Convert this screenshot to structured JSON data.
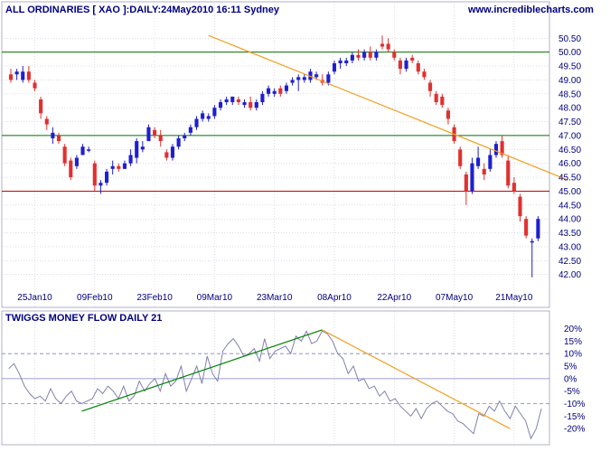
{
  "colors": {
    "up": "#1f1fcf",
    "down": "#e03030",
    "resistance": "#007000",
    "support": "#cc0000",
    "trend_orange": "#f0a020",
    "trend_green": "#008000",
    "mf_line": "#8080b0",
    "grid": "#c8c8d8",
    "text": "#000080",
    "ref": "#8080c0"
  },
  "chart_data": [
    {
      "type": "candlestick",
      "title": "ALL ORDINARIES [ XAO ]:DAILY:24May2010 16:11 Sydney",
      "watermark": "www.incrediblecharts.com",
      "ylim": [
        41.6,
        50.9
      ],
      "y_ticks": [
        "42.00",
        "42.50",
        "43.00",
        "43.50",
        "44.00",
        "44.50",
        "45.00",
        "45.50",
        "46.00",
        "46.50",
        "47.00",
        "47.50",
        "48.00",
        "48.50",
        "49.00",
        "49.50",
        "50.00",
        "50.50"
      ],
      "x_tick_labels": [
        "25Jan10",
        "09Feb10",
        "23Feb10",
        "09Mar10",
        "23Mar10",
        "08Apr10",
        "22Apr10",
        "07May10",
        "21May10"
      ],
      "horizontal_lines": [
        50.0,
        47.0,
        45.0
      ],
      "trendline": {
        "from": [
          33,
          50.6
        ],
        "to": [
          93,
          45.4
        ]
      },
      "ohlc": [
        [
          49.2,
          49.4,
          48.9,
          49.0
        ],
        [
          49.2,
          49.4,
          49.0,
          49.3
        ],
        [
          49.0,
          49.5,
          48.9,
          49.3
        ],
        [
          49.3,
          49.5,
          48.9,
          49.0
        ],
        [
          48.9,
          49.0,
          48.6,
          48.7
        ],
        [
          48.3,
          48.4,
          47.6,
          47.8
        ],
        [
          47.6,
          47.7,
          47.2,
          47.4
        ],
        [
          46.9,
          47.3,
          46.7,
          47.1
        ],
        [
          47.0,
          47.1,
          46.7,
          46.8
        ],
        [
          46.6,
          46.7,
          45.9,
          46.0
        ],
        [
          46.1,
          46.2,
          45.4,
          45.5
        ],
        [
          45.9,
          46.3,
          45.8,
          46.2
        ],
        [
          46.3,
          46.7,
          46.3,
          46.6
        ],
        [
          46.5,
          46.6,
          46.4,
          46.5
        ],
        [
          46.0,
          46.1,
          45.0,
          45.2
        ],
        [
          45.2,
          45.4,
          44.9,
          45.3
        ],
        [
          45.3,
          45.8,
          45.2,
          45.7
        ],
        [
          45.8,
          46.1,
          45.6,
          45.9
        ],
        [
          45.9,
          46.0,
          45.7,
          45.8
        ],
        [
          45.8,
          46.1,
          45.8,
          46.0
        ],
        [
          46.0,
          46.5,
          45.9,
          46.3
        ],
        [
          46.2,
          46.9,
          46.0,
          46.8
        ],
        [
          46.5,
          46.8,
          46.4,
          46.6
        ],
        [
          46.8,
          47.4,
          46.8,
          47.3
        ],
        [
          47.2,
          47.3,
          46.9,
          47.0
        ],
        [
          47.0,
          47.2,
          46.6,
          46.8
        ],
        [
          46.4,
          46.5,
          46.1,
          46.2
        ],
        [
          46.2,
          46.7,
          46.1,
          46.6
        ],
        [
          46.6,
          47.0,
          46.5,
          46.9
        ],
        [
          46.9,
          47.1,
          46.8,
          47.0
        ],
        [
          47.1,
          47.4,
          47.0,
          47.3
        ],
        [
          47.3,
          47.7,
          47.2,
          47.6
        ],
        [
          47.6,
          47.9,
          47.5,
          47.8
        ],
        [
          47.6,
          47.8,
          47.5,
          47.7
        ],
        [
          47.7,
          48.1,
          47.6,
          48.0
        ],
        [
          48.0,
          48.3,
          47.9,
          48.2
        ],
        [
          48.2,
          48.4,
          48.1,
          48.3
        ],
        [
          48.2,
          48.4,
          48.1,
          48.4
        ],
        [
          48.3,
          48.4,
          48.1,
          48.2
        ],
        [
          48.1,
          48.3,
          48.0,
          48.2
        ],
        [
          48.2,
          48.4,
          47.9,
          48.0
        ],
        [
          48.0,
          48.3,
          47.9,
          48.2
        ],
        [
          48.2,
          48.6,
          48.1,
          48.5
        ],
        [
          48.5,
          48.8,
          48.4,
          48.7
        ],
        [
          48.5,
          48.7,
          48.4,
          48.6
        ],
        [
          48.7,
          48.8,
          48.4,
          48.5
        ],
        [
          48.6,
          48.9,
          48.5,
          48.8
        ],
        [
          48.9,
          49.1,
          48.8,
          49.0
        ],
        [
          49.0,
          49.2,
          48.6,
          49.1
        ],
        [
          49.0,
          49.2,
          48.9,
          49.1
        ],
        [
          49.0,
          49.4,
          48.9,
          49.3
        ],
        [
          49.1,
          49.3,
          49.0,
          49.2
        ],
        [
          49.0,
          49.2,
          48.8,
          48.9
        ],
        [
          48.9,
          49.3,
          48.8,
          49.2
        ],
        [
          49.3,
          49.7,
          49.2,
          49.6
        ],
        [
          49.6,
          49.8,
          49.4,
          49.7
        ],
        [
          49.6,
          49.8,
          49.5,
          49.7
        ],
        [
          49.7,
          50.0,
          49.6,
          49.9
        ],
        [
          49.9,
          50.1,
          49.7,
          49.8
        ],
        [
          49.8,
          50.1,
          49.7,
          50.0
        ],
        [
          50.0,
          50.2,
          49.7,
          49.8
        ],
        [
          49.8,
          50.1,
          49.7,
          50.0
        ],
        [
          50.3,
          50.6,
          50.1,
          50.2
        ],
        [
          50.3,
          50.5,
          50.0,
          50.1
        ],
        [
          50.0,
          50.1,
          49.7,
          49.8
        ],
        [
          49.7,
          49.8,
          49.2,
          49.4
        ],
        [
          49.4,
          49.8,
          49.3,
          49.7
        ],
        [
          49.8,
          49.9,
          49.6,
          49.7
        ],
        [
          49.6,
          49.7,
          49.2,
          49.3
        ],
        [
          49.3,
          49.4,
          49.0,
          49.1
        ],
        [
          48.9,
          49.0,
          48.4,
          48.6
        ],
        [
          48.5,
          48.6,
          48.1,
          48.2
        ],
        [
          48.4,
          48.5,
          48.0,
          48.1
        ],
        [
          47.9,
          48.0,
          47.4,
          47.6
        ],
        [
          47.3,
          47.4,
          46.7,
          46.8
        ],
        [
          46.5,
          46.6,
          45.8,
          45.9
        ],
        [
          45.6,
          45.7,
          44.5,
          45.0
        ],
        [
          45.0,
          46.2,
          44.9,
          46.0
        ],
        [
          45.9,
          46.6,
          45.8,
          46.2
        ],
        [
          45.8,
          46.0,
          45.4,
          45.6
        ],
        [
          45.8,
          46.5,
          45.7,
          46.3
        ],
        [
          46.3,
          46.8,
          46.2,
          46.7
        ],
        [
          46.8,
          47.0,
          46.2,
          46.3
        ],
        [
          46.1,
          46.3,
          45.1,
          45.2
        ],
        [
          45.3,
          45.5,
          44.9,
          45.0
        ],
        [
          44.8,
          44.9,
          43.9,
          44.1
        ],
        [
          44.0,
          44.1,
          43.3,
          43.4
        ],
        [
          43.2,
          43.3,
          41.9,
          43.2
        ],
        [
          43.3,
          44.1,
          43.2,
          44.0
        ]
      ]
    },
    {
      "type": "line",
      "title": "TWIGGS MONEY FLOW DAILY 21",
      "ylim": [
        -25,
        22
      ],
      "y_ticks": [
        "20%",
        "15%",
        "10%",
        "5%",
        "0%",
        "-5%",
        "-10%",
        "-15%",
        "-20%"
      ],
      "reference_lines": [
        10,
        0,
        -10
      ],
      "trendlines": [
        {
          "color": "green",
          "from": [
            14,
            -13.0
          ],
          "to": [
            60,
            19.5
          ]
        },
        {
          "color": "orange",
          "from": [
            60,
            19.5
          ],
          "to": [
            96,
            -20.0
          ]
        }
      ],
      "values": [
        4,
        6,
        2,
        -3,
        -6,
        -8,
        -7,
        -9,
        -4,
        -8,
        -10,
        -7,
        -5,
        -9,
        -10,
        -9,
        -8,
        -4,
        -6,
        -3,
        -5,
        -8,
        -3,
        -9,
        -7,
        -1,
        -5,
        -2,
        0,
        -5,
        2,
        -3,
        -1,
        5,
        -5,
        0,
        5,
        -2,
        9,
        2,
        -1,
        11,
        14,
        16,
        13,
        9,
        10,
        12,
        7,
        16,
        8,
        11,
        12,
        13,
        10,
        17,
        15,
        19,
        14,
        15,
        19,
        18,
        15,
        10,
        8,
        2,
        5,
        -1,
        0,
        -4,
        -3,
        -7,
        -5,
        -9,
        -8,
        -11,
        -13,
        -15,
        -12,
        -16,
        -12,
        -10,
        -9,
        -11,
        -13,
        -14,
        -17,
        -18,
        -20,
        -22,
        -14,
        -15,
        -11,
        -13,
        -9,
        -13,
        -16,
        -11,
        -14,
        -17,
        -24,
        -20,
        -12
      ],
      "series_start": 0
    }
  ]
}
